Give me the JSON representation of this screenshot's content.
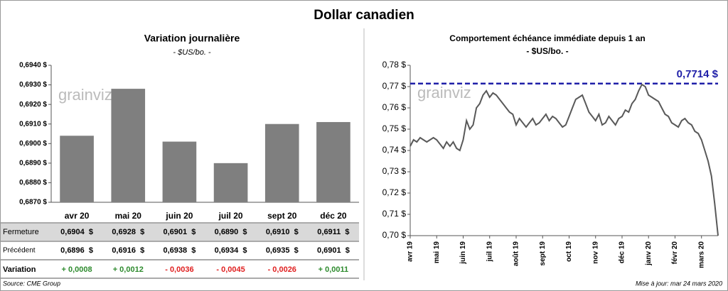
{
  "title": "Dollar canadien",
  "chart_data": [
    {
      "type": "bar",
      "title": "Variation  journalière",
      "subtitle": "- $US/bo. -",
      "watermark": "grainviz",
      "categories": [
        "avr 20",
        "mai 20",
        "juin 20",
        "juil 20",
        "sept 20",
        "déc 20"
      ],
      "values": [
        0.6904,
        0.6928,
        0.6901,
        0.689,
        0.691,
        0.6911
      ],
      "color": "#7f7f7f",
      "ylim": [
        0.687,
        0.694
      ],
      "yticks": [
        {
          "value": 0.687,
          "label": "0,6870 $"
        },
        {
          "value": 0.688,
          "label": "0,6880 $"
        },
        {
          "value": 0.689,
          "label": "0,6890 $"
        },
        {
          "value": 0.69,
          "label": "0,6900 $"
        },
        {
          "value": 0.691,
          "label": "0,6910 $"
        },
        {
          "value": 0.692,
          "label": "0,6920 $"
        },
        {
          "value": 0.693,
          "label": "0,6930 $"
        },
        {
          "value": 0.694,
          "label": "0,6940 $"
        }
      ]
    },
    {
      "type": "line",
      "title": "Comportement échéance immédiate depuis 1 an",
      "subtitle": "- $US/bo. -",
      "watermark": "grainviz",
      "color": "#595959",
      "categories": [
        "avr 19",
        null,
        null,
        null,
        null,
        null,
        null,
        null,
        "mai 19",
        null,
        null,
        null,
        null,
        null,
        null,
        null,
        "juin 19",
        null,
        null,
        null,
        null,
        null,
        null,
        null,
        "juil 19",
        null,
        null,
        null,
        null,
        null,
        null,
        null,
        "août 19",
        null,
        null,
        null,
        null,
        null,
        null,
        null,
        "sept 19",
        null,
        null,
        null,
        null,
        null,
        null,
        null,
        "oct 19",
        null,
        null,
        null,
        null,
        null,
        null,
        null,
        "nov 19",
        null,
        null,
        null,
        null,
        null,
        null,
        null,
        "déc 19",
        null,
        null,
        null,
        null,
        null,
        null,
        null,
        "janv 20",
        null,
        null,
        null,
        null,
        null,
        null,
        null,
        "févr 20",
        null,
        null,
        null,
        null,
        null,
        null,
        null,
        "mars 20",
        null,
        null,
        null,
        null,
        null
      ],
      "values": [
        0.742,
        0.745,
        0.744,
        0.746,
        0.745,
        0.744,
        0.745,
        0.746,
        0.745,
        0.743,
        0.741,
        0.744,
        0.742,
        0.744,
        0.741,
        0.74,
        0.745,
        0.754,
        0.75,
        0.752,
        0.76,
        0.762,
        0.766,
        0.768,
        0.765,
        0.767,
        0.766,
        0.764,
        0.762,
        0.76,
        0.758,
        0.757,
        0.752,
        0.755,
        0.753,
        0.751,
        0.753,
        0.755,
        0.752,
        0.753,
        0.755,
        0.757,
        0.754,
        0.756,
        0.755,
        0.753,
        0.751,
        0.752,
        0.756,
        0.76,
        0.764,
        0.765,
        0.766,
        0.762,
        0.758,
        0.756,
        0.754,
        0.757,
        0.752,
        0.753,
        0.756,
        0.754,
        0.752,
        0.755,
        0.756,
        0.759,
        0.758,
        0.762,
        0.764,
        0.768,
        0.771,
        0.77,
        0.766,
        0.765,
        0.764,
        0.763,
        0.76,
        0.757,
        0.756,
        0.753,
        0.752,
        0.751,
        0.754,
        0.755,
        0.753,
        0.752,
        0.749,
        0.748,
        0.745,
        0.74,
        0.735,
        0.728,
        0.715,
        0.7
      ],
      "reference": {
        "value": 0.7714,
        "label": "0,7714 $",
        "color": "#1f1fa8"
      },
      "ylim": [
        0.7,
        0.78
      ],
      "yticks": [
        {
          "value": 0.7,
          "label": "0,70 $"
        },
        {
          "value": 0.71,
          "label": "0,71 $"
        },
        {
          "value": 0.72,
          "label": "0,72 $"
        },
        {
          "value": 0.73,
          "label": "0,73 $"
        },
        {
          "value": 0.74,
          "label": "0,74 $"
        },
        {
          "value": 0.75,
          "label": "0,75 $"
        },
        {
          "value": 0.76,
          "label": "0,76 $"
        },
        {
          "value": 0.77,
          "label": "0,77 $"
        },
        {
          "value": 0.78,
          "label": "0,78 $"
        }
      ]
    }
  ],
  "table": {
    "positive_color": "#2e8b2e",
    "negative_color": "#e02020",
    "rows": [
      {
        "label": "Fermeture",
        "cells": [
          "0,6904  $",
          "0,6928  $",
          "0,6901  $",
          "0,6890  $",
          "0,6910  $",
          "0,6911  $"
        ]
      },
      {
        "label": "Précédent",
        "cells": [
          "0,6896  $",
          "0,6916  $",
          "0,6938  $",
          "0,6934  $",
          "0,6935  $",
          "0,6901  $"
        ]
      },
      {
        "label": "Variation",
        "cells": [
          "+ 0,0008",
          "+ 0,0012",
          "- 0,0036",
          "- 0,0045",
          "- 0,0026",
          "+ 0,0011"
        ]
      }
    ]
  },
  "source": "Source: CME Group",
  "updated": "Mise à jour: mar 24 mars 2020"
}
